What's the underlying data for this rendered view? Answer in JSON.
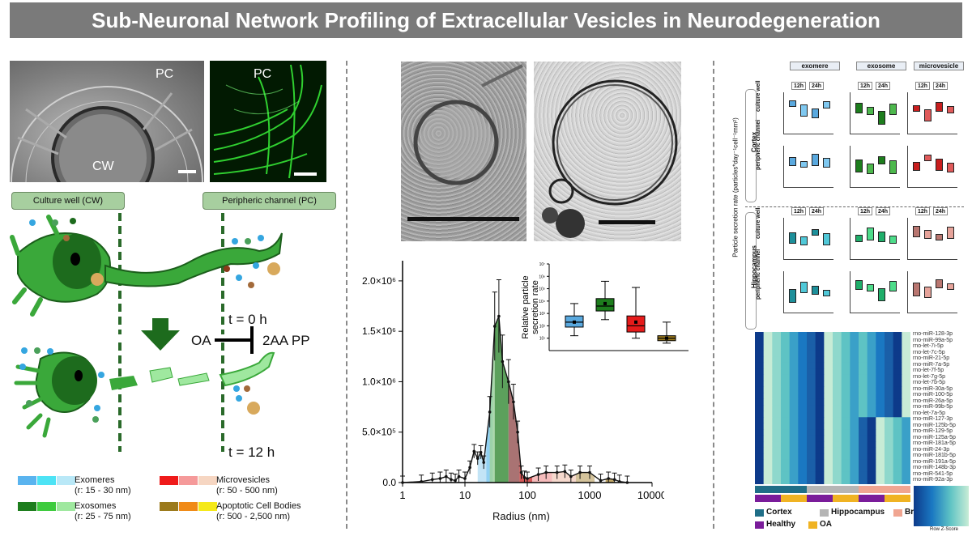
{
  "title": "Sub-Neuronal Network Profiling of Extracellular Vesicles in Neurodegeneration",
  "panel_a": {
    "img_labels": {
      "pc1": "PC",
      "cw": "CW",
      "pc2": "PC"
    },
    "region_labels": {
      "cw": "Culture well (CW)",
      "pc": "Peripheric channel (PC)"
    },
    "time_labels": {
      "t0": "t = 0 h",
      "t12": "t = 12 h"
    },
    "treatment": {
      "oa": "OA",
      "inhibitor": "2AA PP"
    },
    "legend": [
      {
        "name": "Exomeres",
        "range": "(r: 15 - 30 nm)",
        "colors": [
          "#5ab4ef",
          "#4de3f5",
          "#b9e8f7"
        ]
      },
      {
        "name": "Exosomes",
        "range": "(r: 25 - 75 nm)",
        "colors": [
          "#1d7d1d",
          "#3ecb3e",
          "#9fe89f"
        ]
      },
      {
        "name": "Microvesicles",
        "range": "(r: 50 - 500 nm)",
        "colors": [
          "#ef1a1a",
          "#f59a9a",
          "#f6d6c2"
        ]
      },
      {
        "name": "Apoptotic Cell Bodies",
        "range": "(r: 500 - 2,500 nm)",
        "colors": [
          "#9b7a1c",
          "#f08a17",
          "#f5e91a"
        ]
      }
    ]
  },
  "chart_data": [
    {
      "type": "line",
      "xlabel": "Radius (nm)",
      "x_scale": "log",
      "xlim": [
        1,
        10000
      ],
      "ylim": [
        0,
        2200000
      ],
      "x_ticks": [
        "1",
        "10",
        "100",
        "1000",
        "10000"
      ],
      "y_ticks": [
        "0.0",
        "5.0×10⁵",
        "1.0×10⁶",
        "1.5×10⁶",
        "2.0×10⁶"
      ],
      "series": [
        {
          "x": [
            1,
            2,
            3,
            4,
            5,
            6,
            7,
            8,
            10,
            12,
            14,
            16,
            18,
            20,
            25,
            30,
            35,
            40,
            50,
            60,
            70,
            80,
            90,
            100,
            150,
            200,
            300,
            400,
            500,
            700,
            1000,
            1500,
            2000,
            2500,
            3000,
            4000
          ],
          "values": [
            0,
            10000,
            30000,
            40000,
            60000,
            30000,
            20000,
            60000,
            40000,
            150000,
            310000,
            240000,
            300000,
            200000,
            700000,
            1550000,
            1650000,
            1200000,
            1000000,
            800000,
            500000,
            100000,
            50000,
            40000,
            80000,
            100000,
            100000,
            110000,
            60000,
            100000,
            100000,
            20000,
            40000,
            30000,
            10000,
            0
          ]
        }
      ]
    },
    {
      "type": "box",
      "ylabel": "Relative particle secretion rate",
      "y_scale": "log",
      "y_ticks": [
        "10¹",
        "10²",
        "10³",
        "10⁴",
        "10⁵",
        "10⁶",
        "10⁷"
      ],
      "series": [
        {
          "name": "Exomeres",
          "color": "#5aa9df",
          "min": 1.2,
          "q1": 1.9,
          "median": 2.3,
          "q3": 2.8,
          "max": 3.8,
          "mean": 2.3
        },
        {
          "name": "Exosomes",
          "color": "#1d7d1d",
          "min": 2.5,
          "q1": 3.2,
          "median": 3.6,
          "q3": 4.2,
          "max": 5.6,
          "mean": 3.8
        },
        {
          "name": "Microvesicles",
          "color": "#e61b1b",
          "min": 1.0,
          "q1": 1.5,
          "median": 2.0,
          "q3": 2.8,
          "max": 5.1,
          "mean": 2.3
        },
        {
          "name": "Apoptotic Cell Bodies",
          "color": "#9b7a1c",
          "min": 0.6,
          "q1": 0.8,
          "median": 1.0,
          "q3": 1.2,
          "max": 2.3,
          "mean": 1.0
        }
      ]
    }
  ],
  "panel_c": {
    "ylabel": "Particle secretion rate (particles*day⁻¹cell⁻¹mm²)",
    "col_headers": [
      "exomere",
      "exosome",
      "microvesicle"
    ],
    "time_headers": [
      "12h",
      "24h"
    ],
    "region_labels": [
      "Cortex",
      "Hippocampus"
    ],
    "sub_labels": [
      "culture well",
      "peripheric channel"
    ],
    "mirnas": [
      "rno-miR-128-3p",
      "rno-miR-99a-5p",
      "rno-let-7i-5p",
      "rno-let-7c-5p",
      "rno-miR-21-5p",
      "rno-miR-7a-5p",
      "rno-let-7f-5p",
      "rno-let-7g-5p",
      "rno-let-7b-5p",
      "rno-miR-30a-5p",
      "rno-miR-100-5p",
      "rno-miR-26a-5p",
      "rno-miR-99b-5p",
      "rno-let-7a-5p",
      "rno-miR-127-3p",
      "rno-miR-125b-5p",
      "rno-miR-129-5p",
      "rno-miR-125a-5p",
      "rno-miR-181a-5p",
      "rno-miR-24-3p",
      "rno-miR-181b-5p",
      "rno-miR-191a-5p",
      "rno-miR-148b-3p",
      "rno-miR-541-5p",
      "rno-miR-92a-3p"
    ],
    "legend": [
      {
        "name": "Cortex",
        "color": "#1f6e87"
      },
      {
        "name": "Hippocampus",
        "color": "#b5b5b5"
      },
      {
        "name": "Brain Stem",
        "color": "#f0a591"
      },
      {
        "name": "Healthy",
        "color": "#7a1c9a"
      },
      {
        "name": "OA",
        "color": "#f0b323"
      }
    ],
    "scale_label": "Row Z-Score"
  }
}
